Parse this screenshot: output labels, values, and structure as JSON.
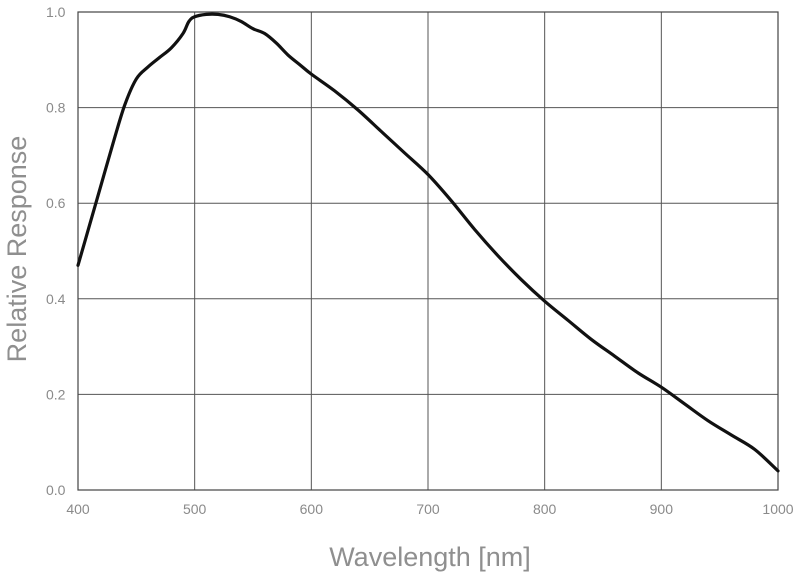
{
  "chart_data": {
    "type": "line",
    "title": "",
    "xlabel": "Wavelength [nm]",
    "ylabel": "Relative Response",
    "xlim": [
      400,
      1000
    ],
    "ylim": [
      0.0,
      1.0
    ],
    "x_ticks": [
      "400",
      "500",
      "600",
      "700",
      "800",
      "900",
      "1000"
    ],
    "y_ticks": [
      "0.0",
      "0.2",
      "0.4",
      "0.6",
      "0.8",
      "1.0"
    ],
    "grid": true,
    "legend": "none",
    "line_color": "#111111",
    "grid_color": "#555555",
    "series": [
      {
        "x": [
          400,
          410,
          420,
          430,
          440,
          450,
          460,
          470,
          480,
          490,
          495,
          500,
          510,
          520,
          530,
          540,
          550,
          560,
          570,
          580,
          590,
          600,
          620,
          640,
          660,
          680,
          700,
          720,
          740,
          760,
          780,
          800,
          820,
          840,
          860,
          880,
          900,
          920,
          940,
          960,
          980,
          1000
        ],
        "y": [
          0.47,
          0.555,
          0.64,
          0.725,
          0.805,
          0.86,
          0.885,
          0.905,
          0.925,
          0.955,
          0.98,
          0.99,
          0.995,
          0.995,
          0.99,
          0.98,
          0.965,
          0.955,
          0.935,
          0.91,
          0.89,
          0.87,
          0.835,
          0.795,
          0.75,
          0.705,
          0.66,
          0.605,
          0.545,
          0.49,
          0.44,
          0.395,
          0.355,
          0.315,
          0.28,
          0.245,
          0.215,
          0.18,
          0.145,
          0.115,
          0.085,
          0.04
        ]
      }
    ]
  }
}
